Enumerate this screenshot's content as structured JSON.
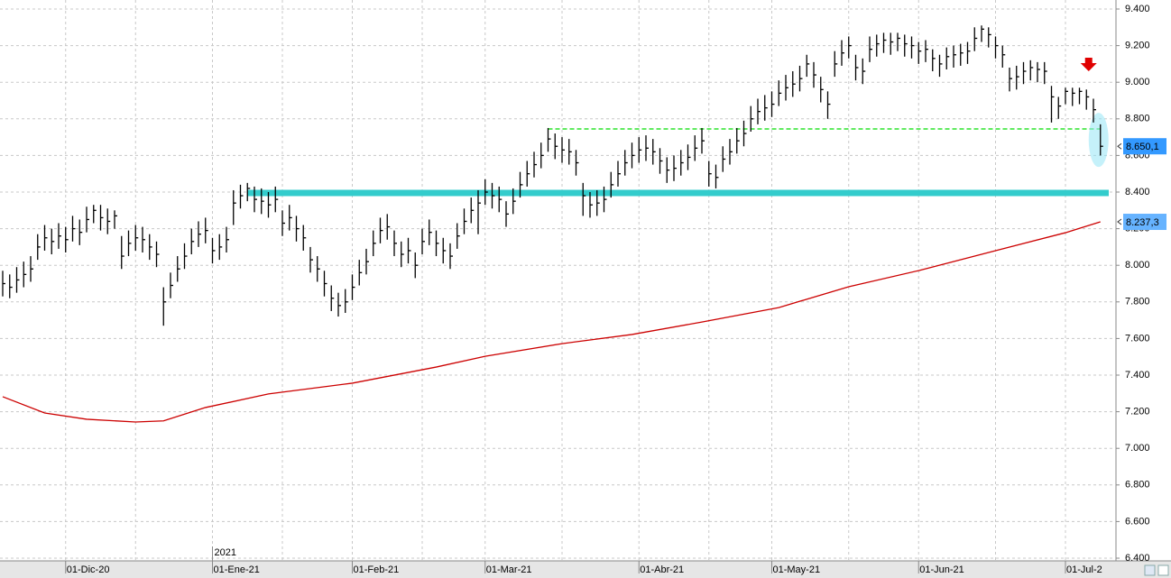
{
  "chart_data": {
    "type": "ohlc",
    "high": [
      7970,
      7950,
      7990,
      8020,
      8050,
      8170,
      8220,
      8200,
      8230,
      8210,
      8270,
      8250,
      8320,
      8330,
      8330,
      8310,
      8300,
      8160,
      8190,
      8220,
      8210,
      8170,
      8130,
      7880,
      7960,
      8050,
      8120,
      8200,
      8240,
      8260,
      8150,
      8170,
      8210,
      8410,
      8440,
      8450,
      8430,
      8420,
      8400,
      8430,
      8300,
      8330,
      8270,
      8220,
      8100,
      8050,
      7970,
      7890,
      7850,
      7870,
      7950,
      8030,
      8090,
      8190,
      8260,
      8280,
      8190,
      8130,
      8150,
      8070,
      8200,
      8250,
      8190,
      8150,
      8120,
      8230,
      8310,
      8370,
      8410,
      8470,
      8450,
      8430,
      8350,
      8420,
      8510,
      8570,
      8620,
      8670,
      8750,
      8720,
      8700,
      8690,
      8630,
      8450,
      8400,
      8410,
      8430,
      8510,
      8570,
      8630,
      8670,
      8700,
      8710,
      8690,
      8640,
      8590,
      8600,
      8630,
      8660,
      8710,
      8750,
      8570,
      8550,
      8650,
      8690,
      8750,
      8790,
      8870,
      8910,
      8930,
      8950,
      9010,
      9040,
      9060,
      9090,
      9150,
      9110,
      9030,
      8950,
      9170,
      9230,
      9250,
      9150,
      9130,
      9250,
      9260,
      9270,
      9270,
      9270,
      9260,
      9250,
      9220,
      9230,
      9180,
      9150,
      9190,
      9200,
      9210,
      9220,
      9300,
      9310,
      9300,
      9250,
      9200,
      9080,
      9090,
      9110,
      9120,
      9110,
      9110,
      8980,
      8920,
      8970,
      8970,
      8970,
      8960,
      8910,
      8770
    ],
    "low": [
      7830,
      7820,
      7850,
      7880,
      7910,
      8030,
      8080,
      8060,
      8090,
      8070,
      8130,
      8110,
      8180,
      8230,
      8190,
      8170,
      8200,
      7980,
      8050,
      8080,
      8070,
      8030,
      7990,
      7670,
      7820,
      7910,
      7980,
      8060,
      8100,
      8120,
      8010,
      8030,
      8070,
      8220,
      8310,
      8350,
      8290,
      8280,
      8260,
      8290,
      8160,
      8190,
      8130,
      8080,
      7960,
      7910,
      7830,
      7750,
      7720,
      7740,
      7810,
      7890,
      7950,
      8050,
      8120,
      8140,
      8050,
      7990,
      8010,
      7930,
      8060,
      8110,
      8050,
      8010,
      7980,
      8090,
      8170,
      8230,
      8170,
      8330,
      8310,
      8290,
      8210,
      8280,
      8370,
      8430,
      8480,
      8530,
      8620,
      8580,
      8560,
      8550,
      8490,
      8270,
      8260,
      8270,
      8290,
      8370,
      8430,
      8490,
      8530,
      8560,
      8570,
      8550,
      8500,
      8450,
      8460,
      8490,
      8520,
      8570,
      8610,
      8430,
      8420,
      8510,
      8550,
      8610,
      8650,
      8730,
      8770,
      8790,
      8810,
      8870,
      8900,
      8920,
      8950,
      9030,
      8970,
      8890,
      8800,
      9030,
      9090,
      9130,
      9010,
      8990,
      9110,
      9140,
      9160,
      9150,
      9170,
      9140,
      9130,
      9100,
      9110,
      9060,
      9030,
      9070,
      9080,
      9090,
      9100,
      9170,
      9220,
      9190,
      9130,
      9080,
      8950,
      8960,
      8990,
      9010,
      9000,
      8990,
      8780,
      8800,
      8880,
      8870,
      8880,
      8850,
      8780,
      8600
    ],
    "close": [
      7900,
      7880,
      7920,
      7950,
      7980,
      8100,
      8150,
      8130,
      8160,
      8140,
      8200,
      8180,
      8250,
      8300,
      8260,
      8240,
      8270,
      8050,
      8120,
      8150,
      8140,
      8100,
      8060,
      7800,
      7890,
      7980,
      8050,
      8130,
      8170,
      8190,
      8080,
      8100,
      8140,
      8340,
      8380,
      8420,
      8360,
      8350,
      8330,
      8360,
      8230,
      8260,
      8200,
      8150,
      8030,
      7980,
      7900,
      7820,
      7780,
      7800,
      7880,
      7960,
      8020,
      8120,
      8190,
      8210,
      8120,
      8060,
      8080,
      8000,
      8130,
      8180,
      8120,
      8080,
      8050,
      8160,
      8240,
      8300,
      8340,
      8400,
      8380,
      8360,
      8280,
      8350,
      8440,
      8500,
      8550,
      8600,
      8690,
      8650,
      8630,
      8620,
      8560,
      8380,
      8330,
      8340,
      8360,
      8440,
      8500,
      8560,
      8600,
      8630,
      8640,
      8620,
      8570,
      8520,
      8530,
      8560,
      8590,
      8640,
      8680,
      8500,
      8480,
      8580,
      8620,
      8680,
      8720,
      8800,
      8840,
      8860,
      8880,
      8940,
      8970,
      8990,
      9020,
      9100,
      9040,
      8960,
      8880,
      9100,
      9160,
      9200,
      9080,
      9060,
      9180,
      9210,
      9230,
      9220,
      9240,
      9210,
      9200,
      9170,
      9180,
      9130,
      9100,
      9140,
      9150,
      9160,
      9170,
      9240,
      9290,
      9260,
      9200,
      9150,
      9020,
      9030,
      9060,
      9080,
      9070,
      9060,
      8920,
      8870,
      8950,
      8940,
      8950,
      8920,
      8850,
      8650.1
    ],
    "ma": {
      "color": "#cc0000",
      "x": [
        0,
        6,
        12,
        19,
        23,
        29,
        38,
        50,
        62,
        69,
        80,
        90,
        100,
        111,
        121,
        131,
        142,
        152,
        157
      ],
      "values": [
        7282,
        7193,
        7159,
        7144,
        7150,
        7223,
        7297,
        7356,
        7444,
        7503,
        7572,
        7622,
        7690,
        7769,
        7883,
        7971,
        8080,
        8178,
        8237.3
      ]
    },
    "price_tags": [
      {
        "value": 8650.1,
        "label": "8.650,1"
      },
      {
        "value": 8237.3,
        "label": "8.237,3"
      }
    ],
    "levels": [
      {
        "value": 8745,
        "color": "#00dd00",
        "dashed": true,
        "from": 78
      },
      {
        "value": 8395,
        "color": "#33cccc",
        "dashed": false,
        "from": 35
      }
    ],
    "ylim": [
      6400,
      9400
    ],
    "yticks": [
      {
        "value": 6400,
        "label": "6.400"
      },
      {
        "value": 6600,
        "label": "6.600"
      },
      {
        "value": 6800,
        "label": "6.800"
      },
      {
        "value": 7000,
        "label": "7.000"
      },
      {
        "value": 7200,
        "label": "7.200"
      },
      {
        "value": 7400,
        "label": "7.400"
      },
      {
        "value": 7600,
        "label": "7.600"
      },
      {
        "value": 7800,
        "label": "7.800"
      },
      {
        "value": 8000,
        "label": "8.000"
      },
      {
        "value": 8200,
        "label": "8.200"
      },
      {
        "value": 8400,
        "label": "8.400"
      },
      {
        "value": 8600,
        "label": "8.600"
      },
      {
        "value": 8800,
        "label": "8.800"
      },
      {
        "value": 9000,
        "label": "9.000"
      },
      {
        "value": 9200,
        "label": "9.200"
      },
      {
        "value": 9400,
        "label": "9.400"
      }
    ],
    "xticks": [
      {
        "value": 9,
        "label": "01-Dic-20"
      },
      {
        "value": 30,
        "label": "01-Ene-21"
      },
      {
        "value": 50,
        "label": "01-Feb-21"
      },
      {
        "value": 69,
        "label": "01-Mar-21"
      },
      {
        "value": 91,
        "label": "01-Abr-21"
      },
      {
        "value": 110,
        "label": "01-May-21"
      },
      {
        "value": 131,
        "label": "01-Jun-21"
      },
      {
        "value": 152,
        "label": "01-Jul-2"
      }
    ],
    "xgrid_minor": [
      19,
      40,
      60,
      80,
      101,
      121,
      142
    ],
    "year_label": {
      "value": 30,
      "label": "2021"
    },
    "grid": true
  }
}
